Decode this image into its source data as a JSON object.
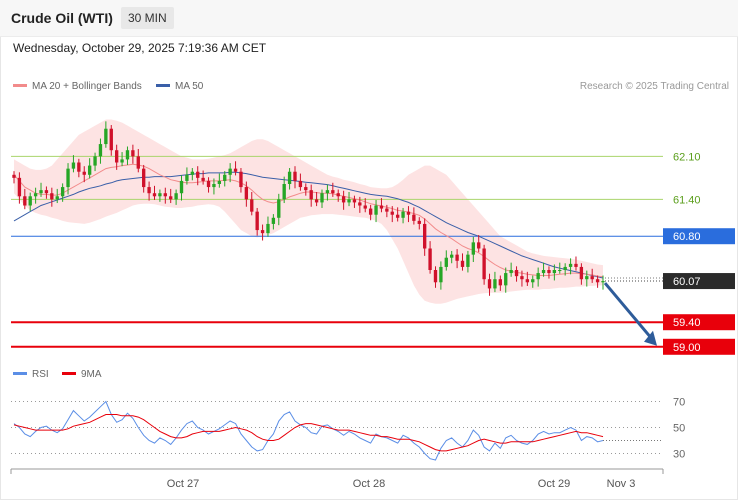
{
  "header": {
    "title": "Crude Oil (WTI)",
    "interval": "30 MIN"
  },
  "timestamp": "Wednesday, October 29, 2025 7:19:36 AM CET",
  "credit": "Research © 2025 Trading Central",
  "colors": {
    "bull": "#26a626",
    "bear": "#d0112b",
    "bollinger_fill": "#fde3e3",
    "ma20": "#f28b8b",
    "ma50": "#3a5fa8",
    "resistance_green": "#a9d46b",
    "pivot_blue": "#2a6ddd",
    "support_red": "#e8000b",
    "rsi": "#5b8ee6",
    "rsi_ma": "#e8000b"
  },
  "chart_data": [
    {
      "type": "candlestick",
      "legend": [
        "MA 20 + Bollinger Bands",
        "MA 50"
      ],
      "ylim": [
        58.85,
        63.05
      ],
      "levels": [
        {
          "value": 62.1,
          "label": "62.10",
          "kind": "resistance"
        },
        {
          "value": 61.4,
          "label": "61.40",
          "kind": "resistance"
        },
        {
          "value": 60.8,
          "label": "60.80",
          "kind": "pivot"
        },
        {
          "value": 59.4,
          "label": "59.40",
          "kind": "support"
        },
        {
          "value": 59.0,
          "label": "59.00",
          "kind": "support"
        }
      ],
      "last_price": {
        "value": 60.07,
        "label": "60.07"
      },
      "forecast_arrow": {
        "from": 60.07,
        "to": 59.0,
        "direction": "down"
      },
      "close": [
        61.75,
        61.45,
        61.3,
        61.45,
        61.5,
        61.55,
        61.5,
        61.4,
        61.45,
        61.6,
        61.9,
        62.0,
        61.85,
        61.8,
        61.95,
        62.1,
        62.3,
        62.55,
        62.2,
        62.0,
        62.05,
        62.2,
        62.1,
        61.9,
        61.6,
        61.5,
        61.45,
        61.5,
        61.45,
        61.4,
        61.5,
        61.7,
        61.8,
        61.85,
        61.75,
        61.7,
        61.6,
        61.65,
        61.7,
        61.8,
        61.9,
        61.85,
        61.6,
        61.4,
        61.2,
        60.9,
        60.85,
        61.0,
        61.1,
        61.4,
        61.65,
        61.85,
        61.7,
        61.6,
        61.55,
        61.4,
        61.35,
        61.5,
        61.55,
        61.5,
        61.45,
        61.35,
        61.4,
        61.35,
        61.3,
        61.25,
        61.15,
        61.3,
        61.25,
        61.2,
        61.15,
        61.1,
        61.2,
        61.15,
        61.05,
        61.0,
        60.6,
        60.25,
        60.05,
        60.3,
        60.45,
        60.5,
        60.4,
        60.3,
        60.5,
        60.7,
        60.6,
        60.1,
        59.95,
        60.1,
        60.0,
        60.2,
        60.25,
        60.15,
        60.1,
        60.05,
        60.1,
        60.2,
        60.25,
        60.2,
        60.25,
        60.25,
        60.3,
        60.35,
        60.3,
        60.1,
        60.15,
        60.1,
        60.05,
        60.07
      ],
      "open": [
        61.8,
        61.75,
        61.45,
        61.3,
        61.45,
        61.5,
        61.55,
        61.5,
        61.4,
        61.45,
        61.6,
        61.9,
        62.0,
        61.85,
        61.8,
        61.95,
        62.1,
        62.3,
        62.55,
        62.2,
        62.0,
        62.05,
        62.2,
        62.1,
        61.9,
        61.6,
        61.5,
        61.45,
        61.5,
        61.45,
        61.4,
        61.5,
        61.7,
        61.8,
        61.85,
        61.75,
        61.7,
        61.6,
        61.65,
        61.7,
        61.8,
        61.9,
        61.85,
        61.6,
        61.4,
        61.2,
        60.9,
        60.85,
        61.0,
        61.1,
        61.4,
        61.65,
        61.85,
        61.7,
        61.6,
        61.55,
        61.4,
        61.35,
        61.5,
        61.55,
        61.5,
        61.45,
        61.35,
        61.4,
        61.35,
        61.3,
        61.25,
        61.15,
        61.3,
        61.25,
        61.2,
        61.15,
        61.1,
        61.2,
        61.15,
        61.05,
        61.0,
        60.6,
        60.25,
        60.05,
        60.3,
        60.45,
        60.5,
        60.4,
        60.3,
        60.5,
        60.7,
        60.6,
        60.1,
        59.95,
        60.1,
        60.0,
        60.2,
        60.25,
        60.15,
        60.1,
        60.05,
        60.1,
        60.2,
        60.25,
        60.2,
        60.25,
        60.25,
        60.3,
        60.35,
        60.3,
        60.1,
        60.15,
        60.1,
        60.05
      ],
      "ma20": [
        61.8,
        61.7,
        61.6,
        61.55,
        61.5,
        61.48,
        61.48,
        61.47,
        61.47,
        61.5,
        61.55,
        61.6,
        61.65,
        61.7,
        61.75,
        61.8,
        61.85,
        61.9,
        61.92,
        61.93,
        61.95,
        61.96,
        61.97,
        61.96,
        61.94,
        61.9,
        61.85,
        61.8,
        61.76,
        61.72,
        61.7,
        61.68,
        61.67,
        61.67,
        61.68,
        61.69,
        61.7,
        61.7,
        61.7,
        61.71,
        61.72,
        61.7,
        61.67,
        61.62,
        61.55,
        61.47,
        61.4,
        61.36,
        61.34,
        61.36,
        61.4,
        61.44,
        61.47,
        61.5,
        61.52,
        61.52,
        61.51,
        61.5,
        61.5,
        61.49,
        61.47,
        61.45,
        61.43,
        61.41,
        61.39,
        61.36,
        61.33,
        61.31,
        61.29,
        61.27,
        61.25,
        61.22,
        61.21,
        61.19,
        61.17,
        61.14,
        61.08,
        61.0,
        60.92,
        60.86,
        60.81,
        60.76,
        60.7,
        60.64,
        60.6,
        60.57,
        60.53,
        60.47,
        60.4,
        60.34,
        60.29,
        60.25,
        60.23,
        60.21,
        60.2,
        60.18,
        60.17,
        60.16,
        60.16,
        60.16,
        60.17,
        60.18,
        60.19,
        60.2,
        60.2,
        60.19,
        60.18,
        60.17,
        60.15,
        60.14
      ],
      "bb_upper": [
        62.05,
        62.0,
        61.95,
        61.9,
        61.88,
        61.88,
        61.9,
        61.95,
        62.05,
        62.15,
        62.25,
        62.35,
        62.45,
        62.5,
        62.55,
        62.6,
        62.65,
        62.7,
        62.7,
        62.68,
        62.65,
        62.6,
        62.55,
        62.5,
        62.45,
        62.4,
        62.35,
        62.3,
        62.25,
        62.2,
        62.15,
        62.1,
        62.08,
        62.05,
        62.05,
        62.05,
        62.06,
        62.08,
        62.1,
        62.12,
        62.15,
        62.2,
        62.25,
        62.3,
        62.35,
        62.38,
        62.38,
        62.35,
        62.3,
        62.25,
        62.2,
        62.15,
        62.1,
        62.05,
        62.0,
        61.95,
        61.9,
        61.85,
        61.8,
        61.77,
        61.75,
        61.72,
        61.7,
        61.68,
        61.65,
        61.63,
        61.6,
        61.59,
        61.58,
        61.58,
        61.6,
        61.65,
        61.72,
        61.8,
        61.85,
        61.9,
        61.95,
        61.95,
        61.9,
        61.85,
        61.8,
        61.7,
        61.6,
        61.5,
        61.4,
        61.3,
        61.2,
        61.1,
        61.0,
        60.9,
        60.8,
        60.75,
        60.7,
        60.65,
        60.6,
        60.55,
        60.52,
        60.5,
        60.48,
        60.47,
        60.46,
        60.45,
        60.44,
        60.43,
        60.42,
        60.4,
        60.38,
        60.36,
        60.34,
        60.33
      ],
      "bb_lower": [
        61.5,
        61.4,
        61.3,
        61.22,
        61.18,
        61.15,
        61.13,
        61.1,
        61.08,
        61.05,
        61.03,
        61.02,
        61.01,
        61.0,
        61.02,
        61.05,
        61.08,
        61.12,
        61.15,
        61.18,
        61.22,
        61.26,
        61.3,
        61.32,
        61.33,
        61.33,
        61.32,
        61.3,
        61.28,
        61.27,
        61.26,
        61.26,
        61.27,
        61.28,
        61.3,
        61.31,
        61.32,
        61.31,
        61.28,
        61.2,
        61.1,
        61.0,
        60.9,
        60.85,
        60.8,
        60.78,
        60.8,
        60.82,
        60.85,
        60.9,
        60.95,
        61.0,
        61.05,
        61.1,
        61.12,
        61.14,
        61.15,
        61.16,
        61.16,
        61.16,
        61.15,
        61.14,
        61.13,
        61.12,
        61.11,
        61.1,
        61.08,
        61.05,
        61.0,
        60.9,
        60.75,
        60.6,
        60.4,
        60.2,
        60.0,
        59.85,
        59.75,
        59.72,
        59.7,
        59.7,
        59.72,
        59.75,
        59.78,
        59.8,
        59.82,
        59.84,
        59.86,
        59.87,
        59.88,
        59.88,
        59.88,
        59.89,
        59.9,
        59.91,
        59.92,
        59.93,
        59.93,
        59.93,
        59.94,
        59.94,
        59.95,
        59.96,
        59.96,
        59.97,
        59.98,
        59.98,
        59.99,
        59.99,
        60.0,
        60.0
      ],
      "ma50": [
        61.05,
        61.1,
        61.15,
        61.2,
        61.25,
        61.3,
        61.33,
        61.36,
        61.39,
        61.42,
        61.45,
        61.48,
        61.52,
        61.55,
        61.58,
        61.6,
        61.62,
        61.65,
        61.67,
        61.7,
        61.72,
        61.73,
        61.74,
        61.75,
        61.76,
        61.76,
        61.77,
        61.77,
        61.77,
        61.77,
        61.78,
        61.79,
        61.8,
        61.81,
        61.82,
        61.82,
        61.83,
        61.83,
        61.83,
        61.83,
        61.84,
        61.84,
        61.83,
        61.82,
        61.8,
        61.78,
        61.76,
        61.75,
        61.74,
        61.73,
        61.72,
        61.71,
        61.7,
        61.69,
        61.68,
        61.67,
        61.66,
        61.65,
        61.64,
        61.62,
        61.6,
        61.58,
        61.56,
        61.54,
        61.52,
        61.5,
        61.48,
        61.47,
        61.46,
        61.45,
        61.43,
        61.41,
        61.38,
        61.35,
        61.31,
        61.27,
        61.22,
        61.17,
        61.12,
        61.07,
        61.02,
        60.98,
        60.94,
        60.9,
        60.86,
        60.83,
        60.8,
        60.76,
        60.72,
        60.68,
        60.64,
        60.6,
        60.56,
        60.52,
        60.48,
        60.45,
        60.42,
        60.39,
        60.36,
        60.33,
        60.3,
        60.28,
        60.26,
        60.24,
        60.22,
        60.2,
        60.18,
        60.16,
        60.14,
        60.12
      ]
    },
    {
      "type": "line",
      "name": "RSI",
      "legend": [
        "RSI",
        "9MA"
      ],
      "ylim": [
        25,
        75
      ],
      "ticks": [
        {
          "value": 70,
          "label": "70"
        },
        {
          "value": 50,
          "label": "50"
        },
        {
          "value": 30,
          "label": "30"
        }
      ],
      "x_ticks": [
        "Oct 27",
        "Oct 28",
        "Oct 29",
        "Nov 3"
      ],
      "rsi": [
        53,
        50,
        45,
        43,
        47,
        50,
        51,
        48,
        46,
        49,
        56,
        63,
        59,
        55,
        58,
        62,
        66,
        70,
        60,
        54,
        56,
        61,
        57,
        50,
        44,
        40,
        38,
        42,
        40,
        37,
        42,
        48,
        53,
        55,
        50,
        48,
        45,
        47,
        49,
        52,
        55,
        53,
        45,
        40,
        35,
        32,
        33,
        40,
        45,
        55,
        60,
        62,
        55,
        52,
        50,
        46,
        45,
        51,
        52,
        49,
        47,
        44,
        47,
        45,
        42,
        40,
        38,
        45,
        43,
        42,
        40,
        38,
        44,
        42,
        38,
        35,
        30,
        26,
        25,
        34,
        40,
        42,
        38,
        35,
        40,
        48,
        44,
        35,
        32,
        38,
        34,
        42,
        44,
        40,
        38,
        37,
        40,
        45,
        47,
        45,
        46,
        46,
        48,
        50,
        48,
        40,
        43,
        42,
        39,
        40
      ],
      "rsi_ma": [
        52,
        51,
        50,
        49,
        48,
        48,
        48,
        48,
        48,
        48,
        49,
        51,
        52,
        53,
        54,
        56,
        58,
        60,
        60,
        60,
        59,
        59,
        59,
        58,
        56,
        53,
        50,
        47,
        45,
        43,
        42,
        42,
        43,
        45,
        46,
        47,
        47,
        47,
        47,
        48,
        49,
        50,
        49,
        48,
        46,
        43,
        41,
        40,
        40,
        41,
        44,
        47,
        50,
        52,
        53,
        53,
        52,
        51,
        50,
        49,
        48,
        48,
        48,
        47,
        46,
        45,
        44,
        44,
        43,
        43,
        42,
        41,
        41,
        41,
        40,
        39,
        37,
        35,
        33,
        32,
        32,
        33,
        34,
        35,
        36,
        38,
        40,
        41,
        40,
        39,
        38,
        38,
        39,
        39,
        39,
        39,
        39,
        40,
        41,
        42,
        43,
        44,
        45,
        46,
        47,
        46,
        46,
        45,
        44,
        43
      ]
    }
  ]
}
